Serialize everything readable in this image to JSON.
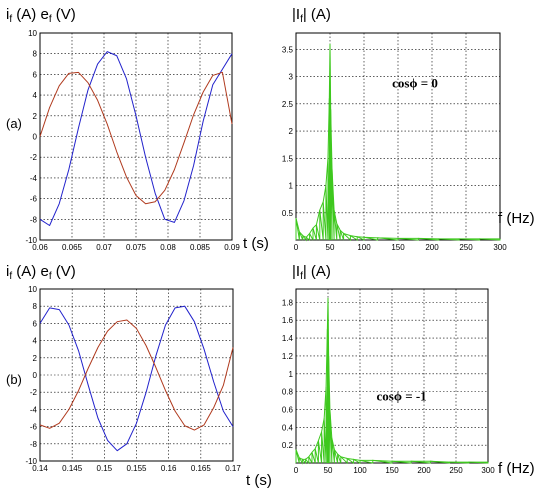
{
  "labels": {
    "a": "(a)",
    "b": "(b)"
  },
  "colors": {
    "current": "#2222cc",
    "emf": "#b03a1e",
    "spectrum": "#3ec81e",
    "grid": "#000000"
  },
  "chart_data": [
    {
      "id": "time_a",
      "type": "line",
      "title": "",
      "ylabel": "i_f (A)  e_f (V)",
      "ylabel_i": "i",
      "ylabel_i_sub": "f",
      "ylabel_i_unit": "(A)",
      "ylabel_e": "e",
      "ylabel_e_sub": "f",
      "ylabel_e_unit": "(V)",
      "xlabel": "t (s)",
      "xlim": [
        0.06,
        0.09
      ],
      "ylim": [
        -10,
        10
      ],
      "xticks": [
        "0.06",
        "0.065",
        "0.07",
        "0.075",
        "0.08",
        "0.085",
        "0.09"
      ],
      "xtick_values": [
        0.06,
        0.065,
        0.07,
        0.075,
        0.08,
        0.085,
        0.09
      ],
      "yticks": [
        "-10",
        "-8",
        "-6",
        "-4",
        "-2",
        "0",
        "2",
        "4",
        "6",
        "8",
        "10"
      ],
      "ytick_values": [
        -10,
        -8,
        -6,
        -4,
        -2,
        0,
        2,
        4,
        6,
        8,
        10
      ],
      "grid": true,
      "series": [
        {
          "color_key": "current",
          "x": [
            0.06,
            0.0615,
            0.063,
            0.0645,
            0.066,
            0.0675,
            0.069,
            0.0705,
            0.072,
            0.0735,
            0.075,
            0.0765,
            0.078,
            0.0795,
            0.081,
            0.0825,
            0.084,
            0.0855,
            0.087,
            0.0885,
            0.09
          ],
          "y": [
            -8,
            -8.6,
            -6.5,
            -3.2,
            0.8,
            4.5,
            7,
            8.2,
            7.8,
            5.6,
            2,
            -2,
            -5.5,
            -8,
            -8.3,
            -6.2,
            -2.8,
            1.5,
            5,
            6.5,
            8
          ]
        },
        {
          "color_key": "emf",
          "x": [
            0.06,
            0.0615,
            0.063,
            0.0645,
            0.066,
            0.0675,
            0.069,
            0.0705,
            0.072,
            0.0735,
            0.075,
            0.0765,
            0.078,
            0.0795,
            0.081,
            0.0825,
            0.084,
            0.0855,
            0.087,
            0.0885,
            0.09
          ],
          "y": [
            0,
            2.8,
            4.9,
            6.1,
            6.2,
            5.2,
            3.5,
            1.2,
            -1.5,
            -3.9,
            -5.7,
            -6.5,
            -6.3,
            -5.2,
            -3.2,
            -0.6,
            2.1,
            4.3,
            5.9,
            6.2,
            1.2
          ]
        }
      ]
    },
    {
      "id": "spec_a",
      "type": "line",
      "title": "",
      "ylabel": "|I_f| (A)",
      "ylabel_pre": "|I",
      "ylabel_sub": "f",
      "ylabel_post": "| (A)",
      "xlabel": "f (Hz)",
      "xlim": [
        0,
        300
      ],
      "ylim": [
        0,
        3.8
      ],
      "xticks": [
        "0",
        "50",
        "100",
        "150",
        "200",
        "250",
        "300"
      ],
      "xtick_values": [
        0,
        50,
        100,
        150,
        200,
        250,
        300
      ],
      "yticks": [
        "0.5",
        "1",
        "1.5",
        "2",
        "2.5",
        "3",
        "3.5"
      ],
      "ytick_values": [
        0.5,
        1,
        1.5,
        2,
        2.5,
        3,
        3.5
      ],
      "grid": true,
      "annotation": {
        "label": "cosϕ",
        "eq": " = 0",
        "x": 175,
        "y": 2.8
      },
      "series": [
        {
          "color_key": "spectrum",
          "x": [
            0,
            5,
            10,
            15,
            20,
            25,
            30,
            35,
            40,
            44,
            47,
            49,
            50,
            51,
            53,
            56,
            60,
            65,
            70,
            80,
            90,
            100,
            120,
            150,
            180,
            210,
            240,
            270,
            300
          ],
          "y": [
            0.4,
            0.15,
            0.08,
            0.05,
            0.12,
            0.22,
            0.28,
            0.55,
            0.7,
            1.0,
            1.5,
            2.6,
            3.6,
            2.4,
            1.3,
            0.55,
            0.3,
            0.18,
            0.12,
            0.08,
            0.06,
            0.05,
            0.04,
            0.03,
            0.03,
            0.02,
            0.02,
            0.02,
            0.02
          ]
        }
      ]
    },
    {
      "id": "time_b",
      "type": "line",
      "title": "",
      "ylabel": "i_f (A)  e_f (V)",
      "ylabel_i": "i",
      "ylabel_i_sub": "f",
      "ylabel_i_unit": "(A)",
      "ylabel_e": "e",
      "ylabel_e_sub": "f",
      "ylabel_e_unit": "(V)",
      "xlabel": "t (s)",
      "xlim": [
        0.14,
        0.17
      ],
      "ylim": [
        -10,
        10
      ],
      "xticks": [
        "0.14",
        "0.145",
        "0.15",
        "0.155",
        "0.16",
        "0.165",
        "0.17"
      ],
      "xtick_values": [
        0.14,
        0.145,
        0.15,
        0.155,
        0.16,
        0.165,
        0.17
      ],
      "yticks": [
        "-10",
        "-8",
        "-6",
        "-4",
        "-2",
        "0",
        "2",
        "4",
        "6",
        "8",
        "10"
      ],
      "ytick_values": [
        -10,
        -8,
        -6,
        -4,
        -2,
        0,
        2,
        4,
        6,
        8,
        10
      ],
      "grid": true,
      "series": [
        {
          "color_key": "current",
          "x": [
            0.14,
            0.1415,
            0.143,
            0.1445,
            0.146,
            0.1475,
            0.149,
            0.1505,
            0.152,
            0.1535,
            0.155,
            0.1565,
            0.158,
            0.1595,
            0.161,
            0.1625,
            0.164,
            0.1655,
            0.167,
            0.1685,
            0.17
          ],
          "y": [
            6,
            7.8,
            7.6,
            5.8,
            2.8,
            -1.2,
            -5,
            -7.6,
            -8.8,
            -8,
            -5.6,
            -2,
            2.2,
            5.8,
            7.8,
            8,
            6.2,
            3,
            -0.8,
            -4.2,
            -6
          ]
        },
        {
          "color_key": "emf",
          "x": [
            0.14,
            0.1415,
            0.143,
            0.1445,
            0.146,
            0.1475,
            0.149,
            0.1505,
            0.152,
            0.1535,
            0.155,
            0.1565,
            0.158,
            0.1595,
            0.161,
            0.1625,
            0.164,
            0.1655,
            0.167,
            0.1685,
            0.17
          ],
          "y": [
            -5.8,
            -6.2,
            -5.6,
            -4,
            -1.8,
            0.8,
            3.2,
            5.1,
            6.2,
            6.4,
            5.4,
            3.4,
            0.9,
            -1.8,
            -4.2,
            -5.9,
            -6.4,
            -5.8,
            -3.8,
            -1.2,
            3.2
          ]
        }
      ]
    },
    {
      "id": "spec_b",
      "type": "line",
      "title": "",
      "ylabel": "|I_f| (A)",
      "ylabel_pre": "|I",
      "ylabel_sub": "f",
      "ylabel_post": "| (A)",
      "xlabel": "f (Hz)",
      "xlim": [
        0,
        300
      ],
      "ylim": [
        0,
        1.95
      ],
      "xticks": [
        "0",
        "50",
        "100",
        "150",
        "200",
        "250",
        "300"
      ],
      "xtick_values": [
        0,
        50,
        100,
        150,
        200,
        250,
        300
      ],
      "yticks": [
        "0.2",
        "0.4",
        "0.6",
        "0.8",
        "1",
        "1.2",
        "1.4",
        "1.6",
        "1.8"
      ],
      "ytick_values": [
        0.2,
        0.4,
        0.6,
        0.8,
        1,
        1.2,
        1.4,
        1.6,
        1.8
      ],
      "grid": true,
      "annotation": {
        "label": "cosϕ",
        "eq": " = -1",
        "x": 165,
        "y": 0.7
      },
      "series": [
        {
          "color_key": "spectrum",
          "x": [
            0,
            5,
            10,
            15,
            20,
            25,
            30,
            35,
            40,
            44,
            47,
            49,
            50,
            51,
            53,
            56,
            60,
            65,
            70,
            80,
            90,
            100,
            120,
            150,
            180,
            210,
            240,
            270,
            300
          ],
          "y": [
            0.15,
            0.06,
            0.04,
            0.04,
            0.07,
            0.12,
            0.16,
            0.25,
            0.35,
            0.5,
            0.85,
            1.5,
            1.85,
            1.2,
            0.6,
            0.28,
            0.15,
            0.1,
            0.07,
            0.05,
            0.04,
            0.03,
            0.03,
            0.02,
            0.02,
            0.02,
            0.01,
            0.01,
            0.01
          ]
        }
      ]
    }
  ]
}
